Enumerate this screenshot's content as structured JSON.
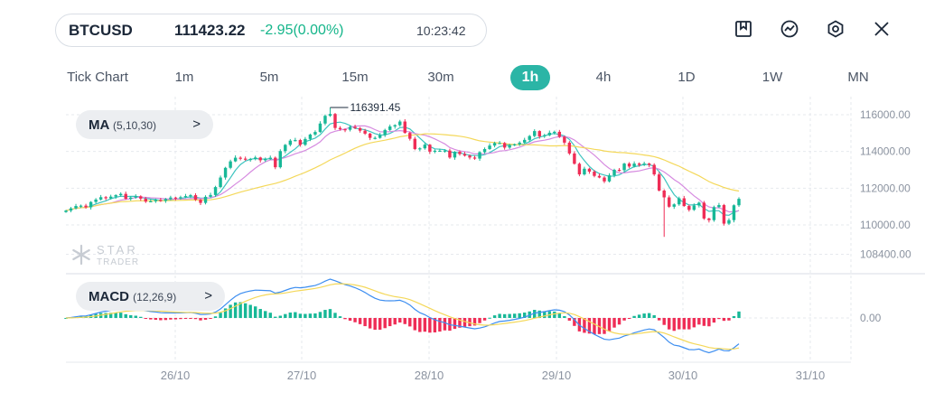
{
  "header": {
    "symbol": "BTCUSD",
    "price": "111423.22",
    "change": "-2.95(0.00%)",
    "time": "10:23:42",
    "change_color": "#14b58a"
  },
  "toolbar": {
    "icons": [
      "bookmark-icon",
      "indicator-icon",
      "settings-icon",
      "close-icon"
    ]
  },
  "timeframes": [
    "Tick Chart",
    "1m",
    "5m",
    "15m",
    "30m",
    "1h",
    "4h",
    "1D",
    "1W",
    "MN"
  ],
  "active_timeframe": "1h",
  "indicators": {
    "ma": {
      "name": "MA",
      "params": "(5,10,30)",
      "chevron": ">"
    },
    "macd": {
      "name": "MACD",
      "params": "(12,26,9)",
      "chevron": ">"
    }
  },
  "watermark": {
    "line1": "STAR",
    "line2": "TRADER"
  },
  "colors": {
    "bull": "#17b897",
    "bear": "#ef2d56",
    "ma5": "#3cc4bf",
    "ma10": "#d68be0",
    "ma30": "#f4d85a",
    "dif": "#3d8ef0",
    "dea": "#f4d85a",
    "accent": "#2bb5a6"
  },
  "chart_data": {
    "type": "candlestick",
    "price_ticks": [
      "116000.00",
      "114000.00",
      "112000.00",
      "110000.00",
      "108400.00"
    ],
    "price_tick_values": [
      116000,
      114000,
      112000,
      110000,
      108400
    ],
    "macd_ticks": [
      "0.00"
    ],
    "date_ticks": [
      "26/10",
      "27/10",
      "28/10",
      "29/10",
      "30/10",
      "31/10"
    ],
    "peak_label": "116391.45",
    "peak_value": 116391.45,
    "close_series": [
      110780,
      110900,
      111030,
      111050,
      110960,
      111250,
      111380,
      111510,
      111450,
      111540,
      111620,
      111690,
      111420,
      111490,
      111560,
      111430,
      111270,
      111290,
      111360,
      111310,
      111410,
      111490,
      111460,
      111510,
      111570,
      111620,
      111370,
      111200,
      111530,
      111630,
      112060,
      112580,
      113110,
      113460,
      113660,
      113610,
      113550,
      113590,
      113670,
      113520,
      113590,
      113660,
      113140,
      114020,
      114360,
      114590,
      114620,
      114360,
      114680,
      114920,
      115060,
      115520,
      115940,
      116040,
      115280,
      115210,
      115180,
      115340,
      115270,
      115130,
      114970,
      114740,
      114740,
      114890,
      115170,
      115360,
      115430,
      115630,
      115010,
      114690,
      114130,
      114170,
      114370,
      113990,
      114040,
      114040,
      114050,
      113670,
      113980,
      113860,
      113770,
      113670,
      113610,
      113960,
      114130,
      114320,
      114460,
      114460,
      114210,
      114330,
      114390,
      114480,
      114630,
      114840,
      115110,
      114820,
      114880,
      115020,
      115070,
      114800,
      114480,
      113890,
      113330,
      112750,
      113060,
      112900,
      112670,
      112580,
      112370,
      112700,
      113000,
      112980,
      113340,
      113180,
      113340,
      113270,
      113340,
      113270,
      112750,
      111870,
      111500,
      110990,
      111120,
      111450,
      111030,
      110820,
      111060,
      111210,
      110350,
      110260,
      110970,
      111080,
      110070,
      110260,
      111070,
      111420
    ]
  }
}
